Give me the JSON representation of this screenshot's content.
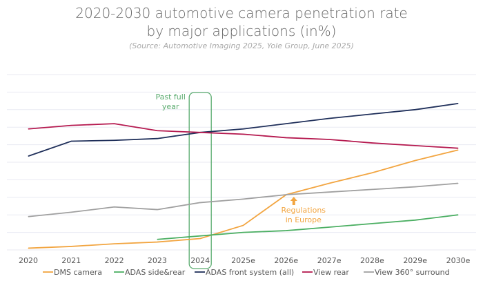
{
  "chart_data": {
    "type": "line",
    "title": "2020-2030 automotive camera penetration rate by major applications (in%)",
    "title_line1": "2020-2030 automotive camera penetration rate",
    "title_line2": "by major applications (in%)",
    "subtitle": "(Source: Automotive Imaging 2025, Yole Group, June 2025)",
    "categories": [
      "2020",
      "2021",
      "2022",
      "2023",
      "2024",
      "2025e",
      "2026e",
      "2027e",
      "2028e",
      "2029e",
      "2030e"
    ],
    "ylim": [
      0,
      100
    ],
    "grid": true,
    "legend": "bottom",
    "series": [
      {
        "name": "DMS camera",
        "color": "#f2a541",
        "values": [
          1,
          2,
          3.5,
          4.5,
          6.5,
          14,
          31.5,
          38,
          44,
          51,
          57
        ]
      },
      {
        "name": "ADAS side&rear",
        "color": "#4caf63",
        "values": [
          null,
          null,
          null,
          6,
          8,
          10,
          11,
          13,
          15,
          17,
          20
        ]
      },
      {
        "name": "ADAS front system (all)",
        "color": "#1f2f5a",
        "values": [
          53.5,
          62,
          62.5,
          63.5,
          67,
          69,
          72,
          75,
          77.5,
          80,
          83.5
        ]
      },
      {
        "name": "View rear",
        "color": "#b5194f",
        "values": [
          69,
          71,
          72,
          68,
          67,
          66,
          64,
          63,
          61,
          59.5,
          58
        ]
      },
      {
        "name": "View 360° surround",
        "color": "#a0a0a0",
        "values": [
          19,
          21.5,
          24.5,
          23,
          27,
          29,
          31.5,
          33,
          34.5,
          36,
          38
        ]
      }
    ],
    "annotations": [
      {
        "text_line1": "Past full",
        "text_line2": "year",
        "category": "2024",
        "color": "#5aab6e"
      },
      {
        "text_line1": "Regulations",
        "text_line2": "in Europe",
        "category": "2026e",
        "color": "#f2a541"
      }
    ]
  }
}
